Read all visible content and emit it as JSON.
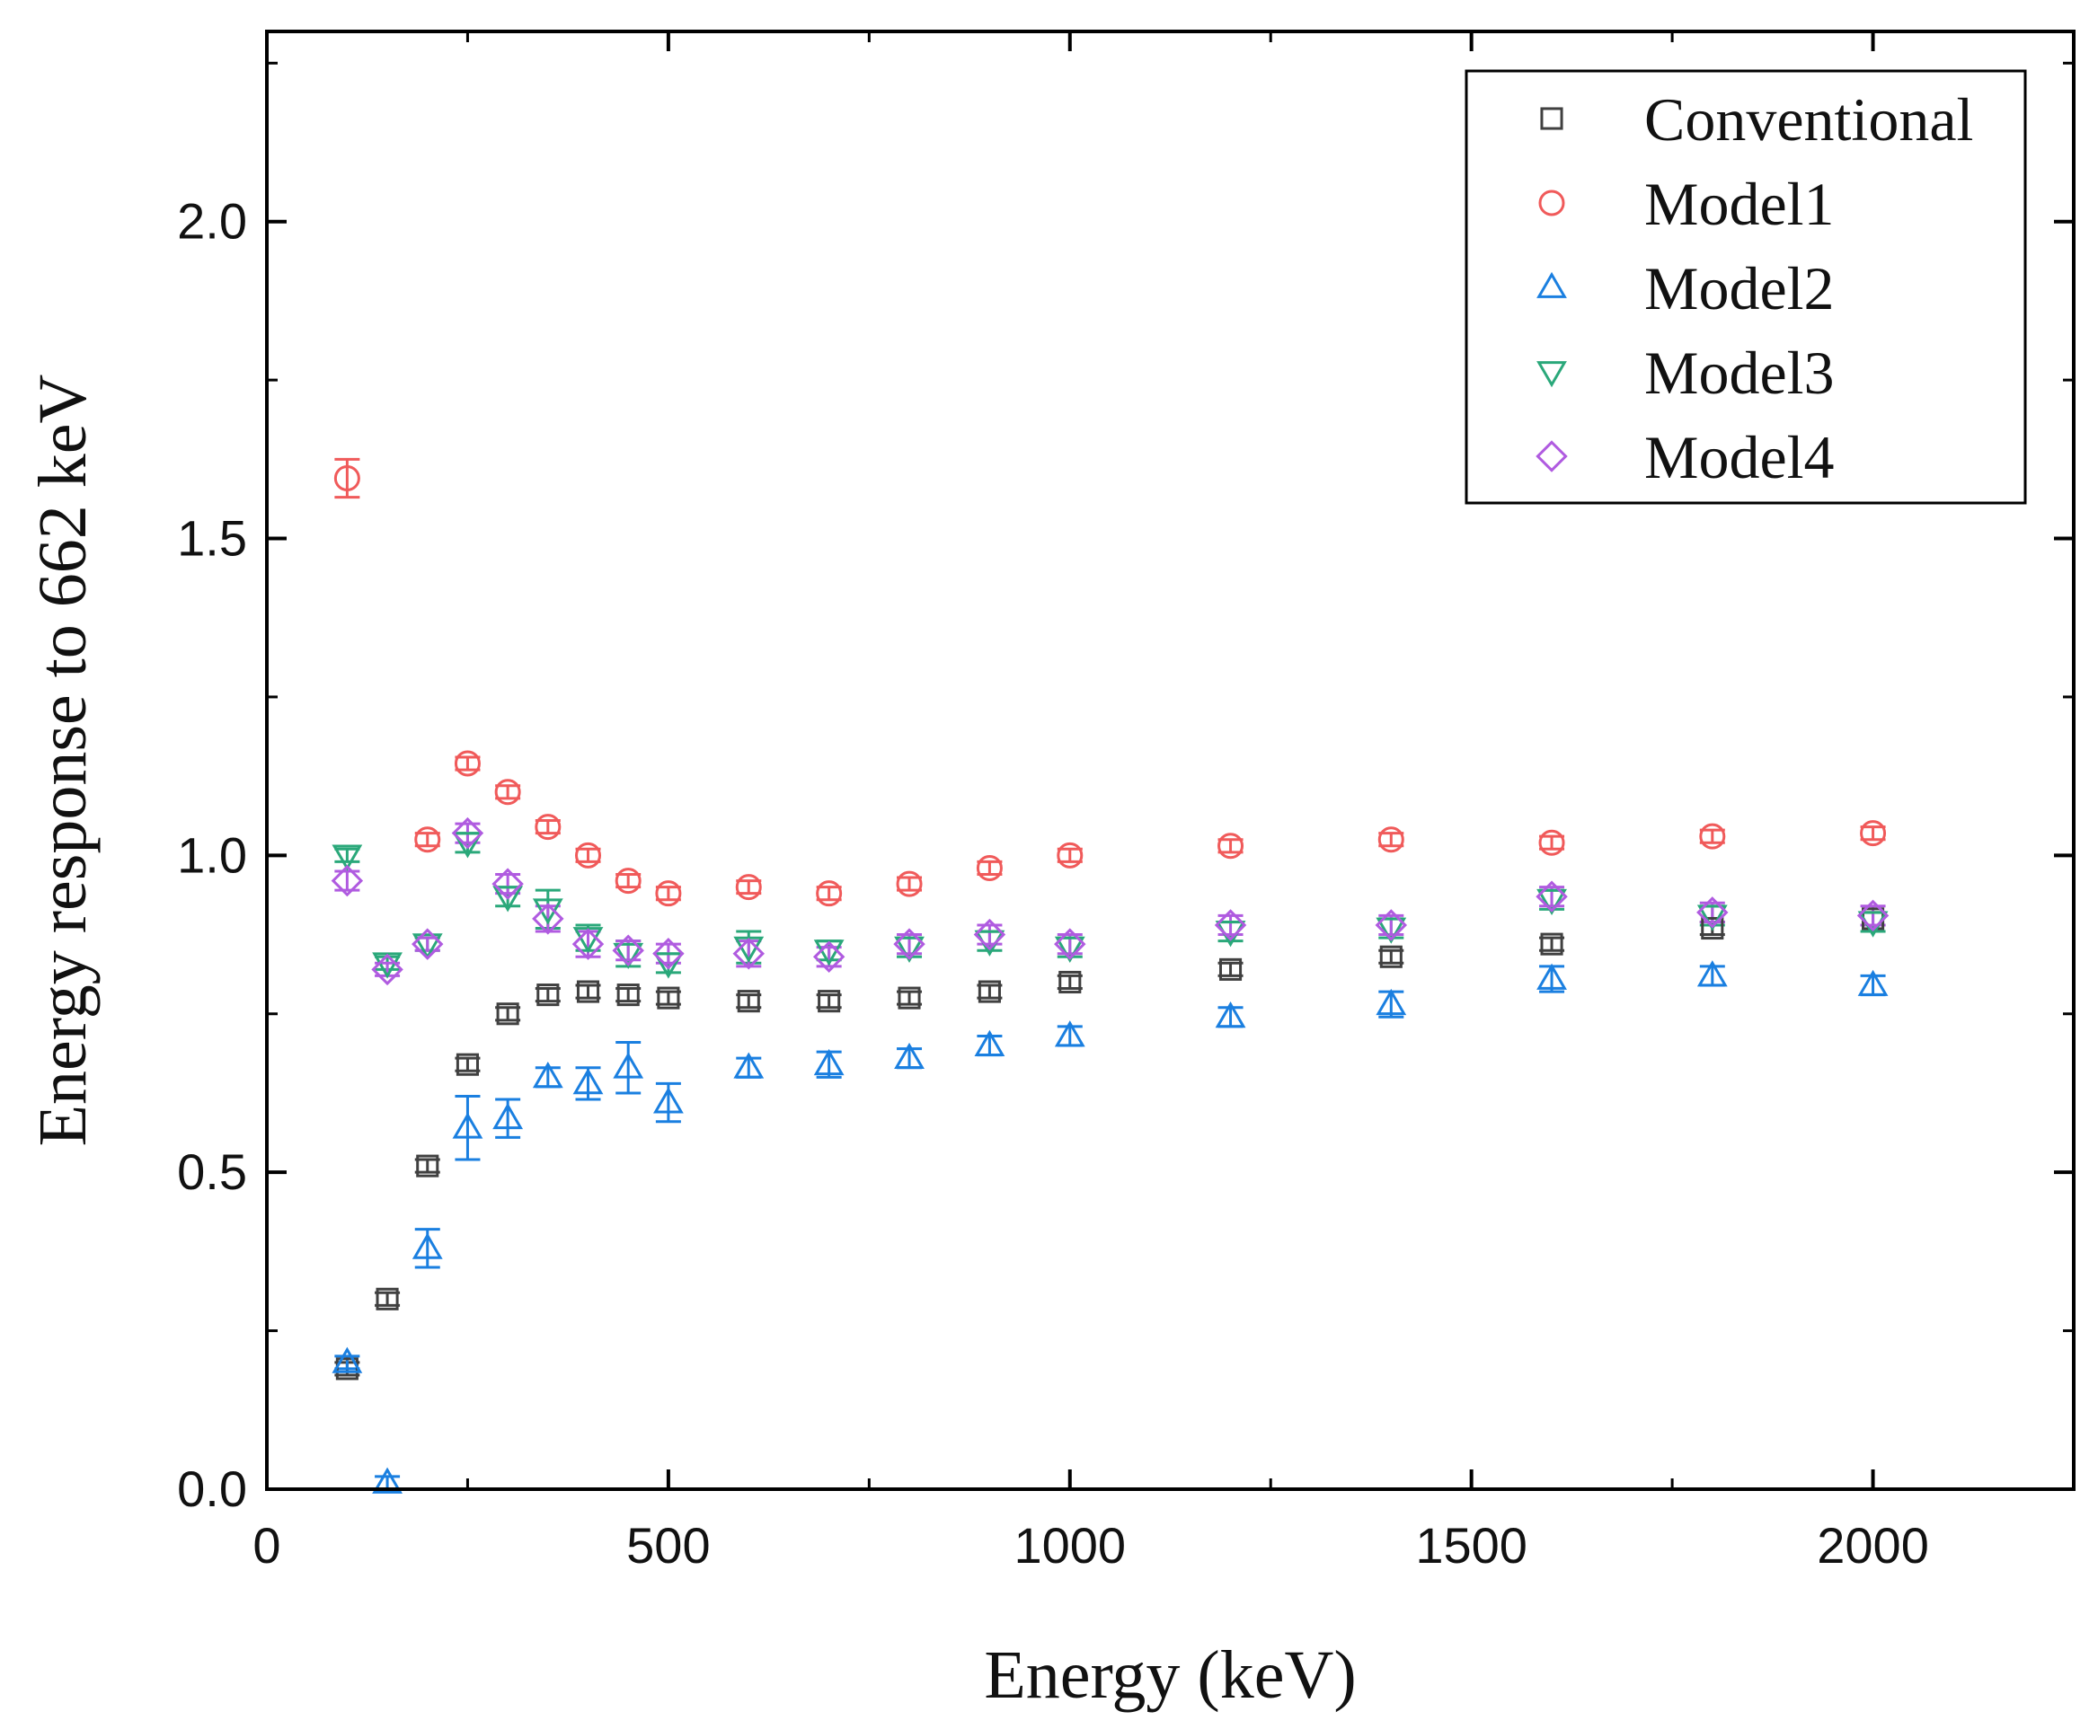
{
  "chart_data": {
    "type": "scatter",
    "title": "",
    "xlabel": "Energy (keV)",
    "ylabel": "Energy response to 662 keV",
    "xlim": [
      0,
      2250
    ],
    "ylim": [
      0,
      2.3
    ],
    "x_ticks": [
      0,
      500,
      1000,
      1500,
      2000
    ],
    "x_tick_labels": [
      "0",
      "500",
      "1000",
      "1500",
      "2000"
    ],
    "y_ticks": [
      0.0,
      0.5,
      1.0,
      1.5,
      2.0
    ],
    "y_tick_labels": [
      "0.0",
      "0.5",
      "1.0",
      "1.5",
      "2.0"
    ],
    "grid": false,
    "legend_position": "top-right",
    "x": [
      100,
      150,
      200,
      250,
      300,
      350,
      400,
      450,
      500,
      600,
      700,
      800,
      900,
      1000,
      1200,
      1400,
      1600,
      1800,
      2000
    ],
    "series": [
      {
        "name": "Conventional",
        "marker": "square",
        "color": "#404040",
        "values": [
          0.19,
          0.3,
          0.51,
          0.67,
          0.75,
          0.78,
          0.785,
          0.78,
          0.775,
          0.77,
          0.77,
          0.775,
          0.785,
          0.8,
          0.82,
          0.84,
          0.86,
          0.885,
          0.9
        ],
        "errors": [
          0.01,
          0.01,
          0.01,
          0.01,
          0.01,
          0.01,
          0.01,
          0.01,
          0.01,
          0.01,
          0.01,
          0.01,
          0.01,
          0.01,
          0.01,
          0.01,
          0.01,
          0.01,
          0.01
        ]
      },
      {
        "name": "Model1",
        "marker": "circle",
        "color": "#f05a5a",
        "values": [
          1.595,
          null,
          1.025,
          1.145,
          1.1,
          1.045,
          1.0,
          0.96,
          0.94,
          0.95,
          0.94,
          0.955,
          0.98,
          1.0,
          1.015,
          1.025,
          1.02,
          1.03,
          1.035
        ],
        "errors": [
          0.03,
          null,
          0.01,
          0.01,
          0.01,
          0.01,
          0.01,
          0.01,
          0.01,
          0.01,
          0.01,
          0.01,
          0.01,
          0.01,
          0.01,
          0.01,
          0.01,
          0.01,
          0.01
        ]
      },
      {
        "name": "Model2",
        "marker": "triangle-up",
        "color": "#1a7fe0",
        "values": [
          0.2,
          0.01,
          0.38,
          0.57,
          0.585,
          0.65,
          0.64,
          0.665,
          0.61,
          0.665,
          0.67,
          0.68,
          0.7,
          0.715,
          0.745,
          0.765,
          0.805,
          0.81,
          0.795
        ],
        "errors": [
          0.01,
          0.01,
          0.03,
          0.05,
          0.03,
          0.015,
          0.025,
          0.04,
          0.03,
          0.015,
          0.02,
          0.015,
          0.015,
          0.015,
          0.015,
          0.02,
          0.02,
          0.015,
          0.015
        ]
      },
      {
        "name": "Model3",
        "marker": "triangle-down",
        "color": "#2aa87a",
        "values": [
          1.0,
          0.83,
          0.86,
          1.02,
          0.935,
          0.915,
          0.87,
          0.845,
          0.83,
          0.855,
          0.85,
          0.855,
          0.865,
          0.855,
          0.88,
          0.885,
          0.93,
          0.905,
          0.895
        ],
        "errors": [
          0.01,
          0.01,
          0.01,
          0.015,
          0.015,
          0.03,
          0.02,
          0.02,
          0.015,
          0.025,
          0.015,
          0.015,
          0.015,
          0.015,
          0.015,
          0.015,
          0.015,
          0.015,
          0.015
        ]
      },
      {
        "name": "Model4",
        "marker": "diamond",
        "color": "#b05be0",
        "values": [
          0.96,
          0.82,
          0.86,
          1.035,
          0.955,
          0.9,
          0.86,
          0.85,
          0.845,
          0.845,
          0.84,
          0.86,
          0.875,
          0.86,
          0.89,
          0.89,
          0.935,
          0.91,
          0.905
        ],
        "errors": [
          0.015,
          0.01,
          0.01,
          0.015,
          0.015,
          0.02,
          0.02,
          0.015,
          0.015,
          0.02,
          0.015,
          0.015,
          0.015,
          0.015,
          0.015,
          0.015,
          0.015,
          0.015,
          0.015
        ]
      }
    ]
  }
}
